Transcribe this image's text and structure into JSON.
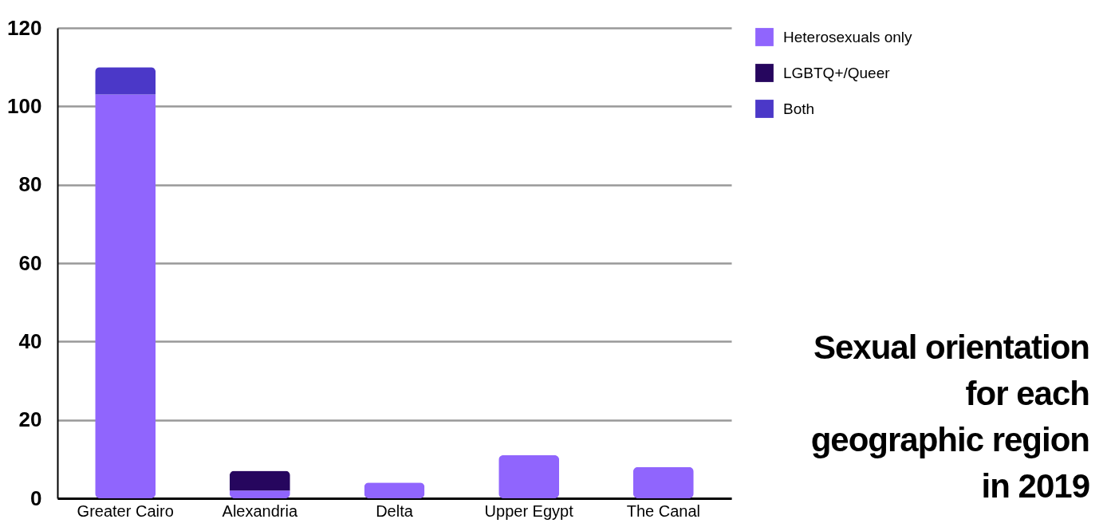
{
  "chart_data": {
    "type": "bar",
    "title": "Sexual orientation for each geographic region in 2019",
    "categories": [
      "Greater Cairo",
      "Alexandria",
      "Delta",
      "Upper Egypt",
      "The Canal"
    ],
    "stacked": true,
    "series": [
      {
        "name": "Heterosexuals only",
        "color": "#9065fd",
        "values": [
          103,
          2,
          4,
          11,
          8
        ]
      },
      {
        "name": "LGBTQ+/Queer",
        "color": "#26065e",
        "values": [
          0,
          5,
          0,
          0,
          0
        ]
      },
      {
        "name": "Both",
        "color": "#4b38c8",
        "values": [
          7,
          0,
          0,
          0,
          0
        ]
      }
    ],
    "ylim": [
      0,
      120
    ],
    "yticks": [
      0,
      20,
      40,
      60,
      80,
      100,
      120
    ],
    "grid": "y",
    "legend": "top right"
  }
}
